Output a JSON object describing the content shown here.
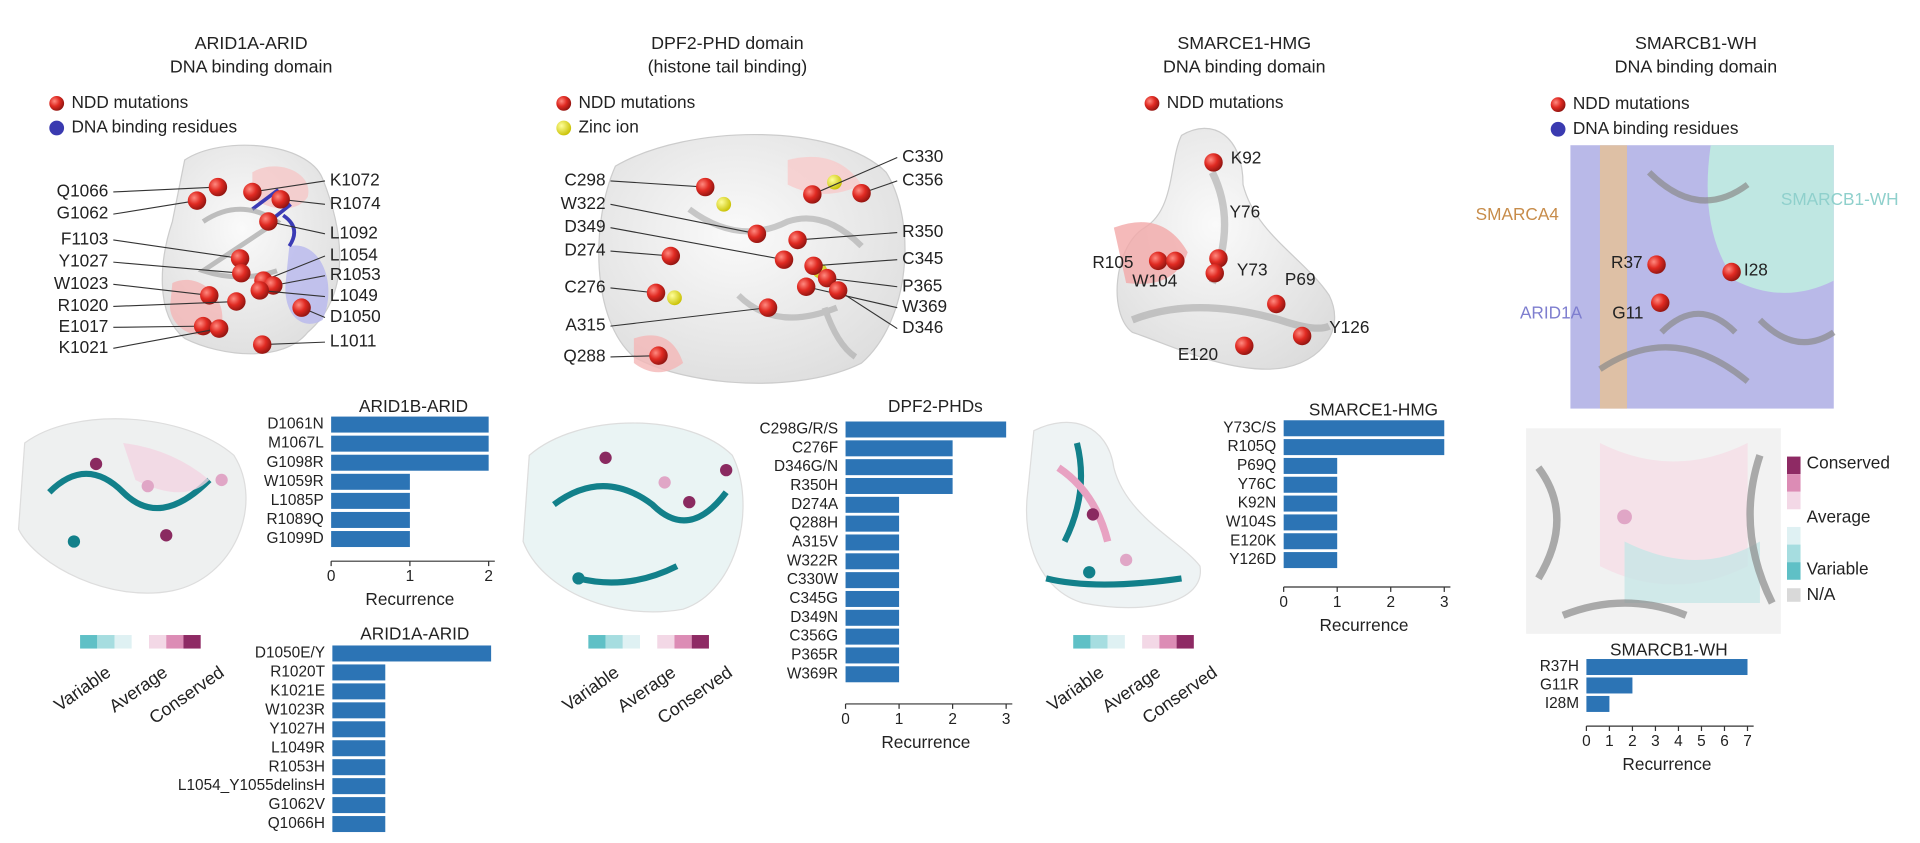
{
  "panels": [
    {
      "title": [
        "ARID1A-ARID",
        "DNA binding domain"
      ],
      "legend": [
        "NDD mutations",
        "DNA binding residues"
      ],
      "residues": [
        "Q1066",
        "G1062",
        "F1103",
        "Y1027",
        "W1023",
        "R1020",
        "E1017",
        "K1021",
        "K1072",
        "R1074",
        "L1092",
        "L1054",
        "R1053",
        "L1049",
        "D1050",
        "L1011"
      ]
    },
    {
      "title": [
        "DPF2-PHD domain",
        "(histone tail binding)"
      ],
      "legend": [
        "NDD mutations",
        "Zinc ion"
      ],
      "residues": [
        "C298",
        "W322",
        "D349",
        "D274",
        "C276",
        "A315",
        "Q288",
        "C330",
        "C356",
        "R350",
        "C345",
        "P365",
        "W369",
        "D346"
      ]
    },
    {
      "title": [
        "SMARCE1-HMG",
        "DNA binding domain"
      ],
      "legend": [
        "NDD mutations"
      ],
      "residues": [
        "K92",
        "R105",
        "W104",
        "Y76",
        "Y73",
        "P69",
        "Y126",
        "E120"
      ]
    },
    {
      "title": [
        "SMARCB1-WH",
        "DNA binding domain"
      ],
      "legend": [
        "NDD mutations",
        "DNA binding residues"
      ],
      "residues": [
        "R37",
        "I28",
        "G11"
      ],
      "complex_labels": [
        "SMARCA4",
        "SMARCB1-WH",
        "ARID1A"
      ]
    }
  ],
  "conservation_scale": [
    "Variable",
    "Average",
    "Conserved"
  ],
  "conservation_legend": [
    "Conserved",
    "Average",
    "Variable",
    "N/A"
  ],
  "chart_data": [
    {
      "type": "bar",
      "orientation": "horizontal",
      "title": "ARID1B-ARID",
      "color": "#2c74b5",
      "categories": [
        "D1061N",
        "M1067L",
        "G1098R",
        "W1059R",
        "L1085P",
        "R1089Q",
        "G1099D"
      ],
      "values": [
        2,
        2,
        2,
        1,
        1,
        1,
        1
      ],
      "xlim": [
        0,
        2
      ],
      "xticks": [
        0,
        1,
        2
      ],
      "xlabel": "Recurrence"
    },
    {
      "type": "bar",
      "orientation": "horizontal",
      "title": "ARID1A-ARID",
      "color": "#2c74b5",
      "categories": [
        "D1050E/Y",
        "R1020T",
        "K1021E",
        "W1023R",
        "Y1027H",
        "L1049R",
        "R1053H",
        "L1054_Y1055delinsH",
        "G1062V",
        "Q1066H"
      ],
      "values": [
        3,
        1,
        1,
        1,
        1,
        1,
        1,
        1,
        1,
        1
      ],
      "xlim": [
        0,
        3
      ]
    },
    {
      "type": "bar",
      "orientation": "horizontal",
      "title": "DPF2-PHDs",
      "color": "#2c74b5",
      "categories": [
        "C298G/R/S",
        "C276F",
        "D346G/N",
        "R350H",
        "D274A",
        "Q288H",
        "A315V",
        "W322R",
        "C330W",
        "C345G",
        "D349N",
        "C356G",
        "P365R",
        "W369R"
      ],
      "values": [
        3,
        2,
        2,
        2,
        1,
        1,
        1,
        1,
        1,
        1,
        1,
        1,
        1,
        1
      ],
      "xlim": [
        0,
        3
      ],
      "xticks": [
        0,
        1,
        2,
        3
      ],
      "xlabel": "Recurrence"
    },
    {
      "type": "bar",
      "orientation": "horizontal",
      "title": "SMARCE1-HMG",
      "color": "#2c74b5",
      "categories": [
        "Y73C/S",
        "R105Q",
        "P69Q",
        "Y76C",
        "K92N",
        "W104S",
        "E120K",
        "Y126D"
      ],
      "values": [
        3,
        3,
        1,
        1,
        1,
        1,
        1,
        1
      ],
      "xlim": [
        0,
        3
      ],
      "xticks": [
        0,
        1,
        2,
        3
      ],
      "xlabel": "Recurrence"
    },
    {
      "type": "bar",
      "orientation": "horizontal",
      "title": "SMARCB1-WH",
      "color": "#2c74b5",
      "categories": [
        "R37H",
        "G11R",
        "I28M"
      ],
      "values": [
        7,
        2,
        1
      ],
      "xlim": [
        0,
        7
      ],
      "xticks": [
        0,
        1,
        2,
        3,
        4,
        5,
        6,
        7
      ],
      "xlabel": "Recurrence"
    }
  ]
}
